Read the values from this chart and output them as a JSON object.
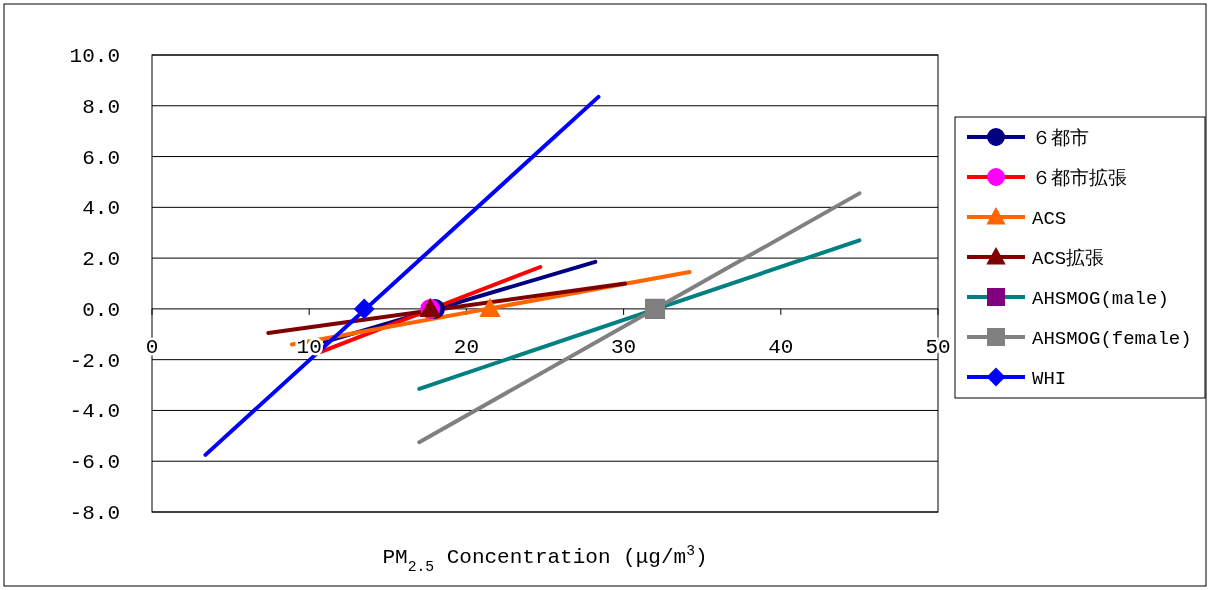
{
  "chart_data": {
    "type": "line",
    "xlabel": "PM$_{2.5}$ Concentration (μg/m$^{3}$)",
    "xlim": [
      0,
      50
    ],
    "xticks": [
      0,
      10,
      20,
      30,
      40,
      50
    ],
    "ylim": [
      -8,
      10
    ],
    "yticks": [
      {
        "value": 10,
        "label": "10.0"
      },
      {
        "value": 8,
        "label": "8.0"
      },
      {
        "value": 6,
        "label": "6.0"
      },
      {
        "value": 4,
        "label": "4.0"
      },
      {
        "value": 2,
        "label": "2.0"
      },
      {
        "value": 0,
        "label": "0.0"
      },
      {
        "value": -2,
        "label": "-2.0"
      },
      {
        "value": -4,
        "label": "-4.0"
      },
      {
        "value": -6,
        "label": "-6.0"
      },
      {
        "value": -8,
        "label": "-8.0"
      }
    ],
    "grid": "y",
    "legend": "right",
    "line_style": "solid",
    "series": [
      {
        "name": "６都市",
        "color": "#000080",
        "x": [
          11,
          28.2
        ],
        "values": [
          -1.3,
          1.85
        ]
      },
      {
        "type": "scatter",
        "color": "#000080",
        "marker": "circle",
        "x": [
          18
        ],
        "values": [
          0
        ]
      },
      {
        "name": "６都市拡張",
        "color": "#ff0000",
        "x": [
          10.7,
          24.7
        ],
        "values": [
          -1.7,
          1.65
        ]
      },
      {
        "type": "scatter",
        "color": "#ff00ff",
        "marker": "circle",
        "x": [
          17.7
        ],
        "values": [
          0
        ]
      },
      {
        "name": "ACS",
        "color": "#ff6600",
        "x": [
          8.9,
          34.2
        ],
        "values": [
          -1.4,
          1.45
        ]
      },
      {
        "type": "scatter",
        "color": "#ff6600",
        "marker": "triangle",
        "x": [
          21.5
        ],
        "values": [
          0
        ]
      },
      {
        "name": "ACS拡張",
        "color": "#800000",
        "x": [
          7.4,
          30.1
        ],
        "values": [
          -0.95,
          1.0
        ]
      },
      {
        "type": "scatter",
        "color": "#800000",
        "marker": "triangle",
        "x": [
          17.7
        ],
        "values": [
          0
        ]
      },
      {
        "name": "AHSMOG(male)",
        "color": "#008080",
        "x": [
          17,
          45
        ],
        "values": [
          -3.15,
          2.7
        ]
      },
      {
        "type": "scatter",
        "color": "#800080",
        "marker": "square",
        "x": [
          32
        ],
        "values": [
          0
        ]
      },
      {
        "name": "AHSMOG(female)",
        "color": "#808080",
        "x": [
          17,
          45
        ],
        "values": [
          -5.25,
          4.55
        ]
      },
      {
        "type": "scatter",
        "color": "#808080",
        "marker": "square",
        "x": [
          32
        ],
        "values": [
          0
        ]
      },
      {
        "name": "WHI",
        "color": "#0000ff",
        "x": [
          3.4,
          28.4
        ],
        "values": [
          -5.75,
          8.35
        ]
      },
      {
        "type": "scatter",
        "color": "#0000ff",
        "marker": "diamond",
        "x": [
          13.5
        ],
        "values": [
          0
        ]
      }
    ]
  }
}
